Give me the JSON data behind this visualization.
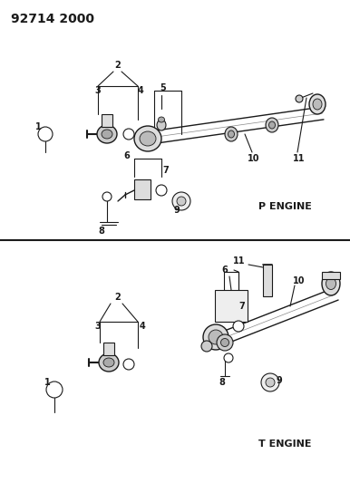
{
  "title": "92714 2000",
  "bg_color": "#ffffff",
  "line_color": "#1a1a1a",
  "p_engine_label": "P ENGINE",
  "t_engine_label": "T ENGINE",
  "title_fontsize": 10,
  "label_fontsize": 8,
  "part_fontsize": 7
}
